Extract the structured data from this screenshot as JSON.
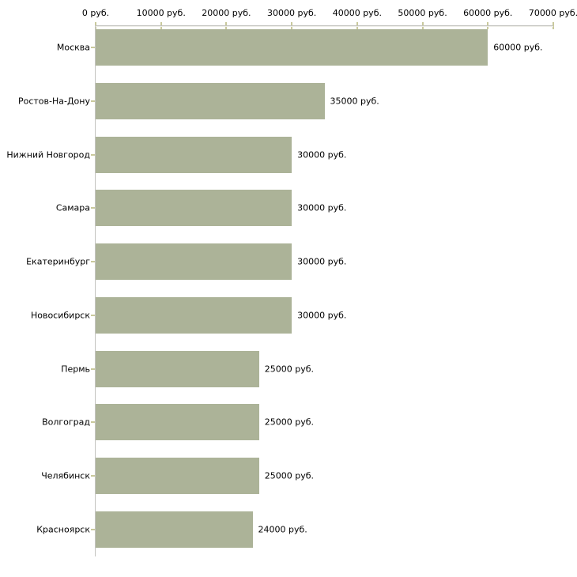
{
  "chart_data": {
    "type": "bar",
    "orientation": "horizontal",
    "title": "",
    "categories": [
      "Москва",
      "Ростов-На-Дону",
      "Нижний Новгород",
      "Самара",
      "Екатеринбург",
      "Новосибирск",
      "Пермь",
      "Волгоград",
      "Челябинск",
      "Красноярск"
    ],
    "values": [
      60000,
      35000,
      30000,
      30000,
      30000,
      30000,
      25000,
      25000,
      25000,
      24000
    ],
    "value_labels": [
      "60000 руб.",
      "35000 руб.",
      "30000 руб.",
      "30000 руб.",
      "30000 руб.",
      "30000 руб.",
      "25000 руб.",
      "25000 руб.",
      "25000 руб.",
      "24000 руб."
    ],
    "unit": "руб.",
    "x_axis": {
      "position": "top",
      "min": 0,
      "max": 70000,
      "ticks": [
        0,
        10000,
        20000,
        30000,
        40000,
        50000,
        60000,
        70000
      ],
      "tick_labels": [
        "0 руб.",
        "10000 руб.",
        "20000 руб.",
        "30000 руб.",
        "40000 руб.",
        "50000 руб.",
        "60000 руб.",
        "70000 руб."
      ]
    },
    "legend": "none",
    "grid": "off",
    "colors": {
      "bar": "#acb398",
      "axis_line": "#c4c4c0",
      "axis_highlight": "#ededE7",
      "tick": "#c9c99c",
      "text": "#000000",
      "background": "#ffffff"
    }
  }
}
